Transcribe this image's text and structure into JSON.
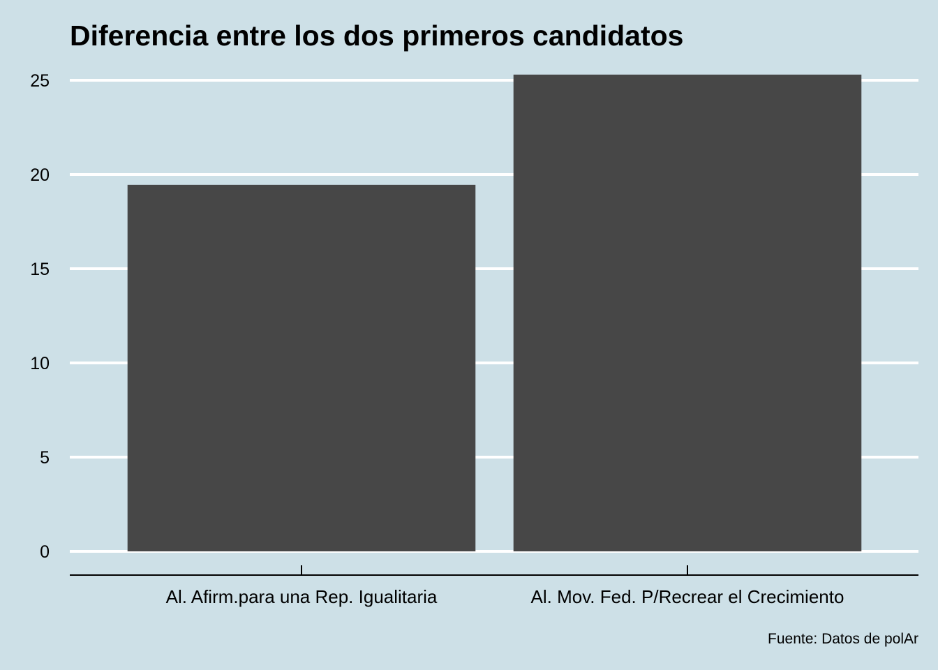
{
  "colors": {
    "background": "#cde0e7",
    "bar": "#474747",
    "gridline": "#ffffff",
    "axis": "#000000",
    "text": "#000000"
  },
  "chart_data": {
    "type": "bar",
    "title": "Diferencia entre los dos primeros candidatos",
    "xlabel": "",
    "ylabel": "",
    "categories": [
      "Al. Afirm.para una Rep. Igualitaria",
      "Al. Mov. Fed. P/Recrear el Crecimiento"
    ],
    "values": [
      19.45,
      25.3
    ],
    "ylim": [
      0,
      25.6
    ],
    "yticks": [
      0,
      5,
      10,
      15,
      20,
      25
    ],
    "grid": "horizontal",
    "legend": "none",
    "caption": "Fuente: Datos de polAr"
  }
}
